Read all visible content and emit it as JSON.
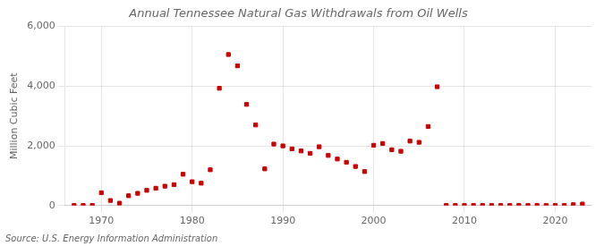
{
  "chart_data": {
    "type": "scatter",
    "title": "Annual Tennessee Natural Gas Withdrawals from Oil Wells",
    "ylabel": "Million Cubic Feet",
    "source": "Source: U.S. Energy Information Administration",
    "x": [
      1967,
      1968,
      1969,
      1970,
      1971,
      1972,
      1973,
      1974,
      1975,
      1976,
      1977,
      1978,
      1979,
      1980,
      1981,
      1982,
      1983,
      1984,
      1985,
      1986,
      1987,
      1988,
      1989,
      1990,
      1991,
      1992,
      1993,
      1994,
      1995,
      1996,
      1997,
      1998,
      1999,
      2000,
      2001,
      2002,
      2003,
      2004,
      2005,
      2006,
      2007,
      2008,
      2009,
      2010,
      2011,
      2012,
      2013,
      2014,
      2015,
      2016,
      2017,
      2018,
      2019,
      2020,
      2021,
      2022,
      2023
    ],
    "values": [
      3,
      3,
      3,
      430,
      170,
      80,
      330,
      410,
      510,
      580,
      650,
      700,
      1050,
      800,
      750,
      1200,
      3930,
      5060,
      4680,
      3390,
      2700,
      1230,
      2060,
      2000,
      1900,
      1830,
      1750,
      1970,
      1680,
      1560,
      1450,
      1310,
      1140,
      2020,
      2080,
      1870,
      1820,
      2160,
      2120,
      2650,
      3980,
      3,
      3,
      3,
      3,
      3,
      3,
      3,
      3,
      3,
      3,
      3,
      3,
      3,
      3,
      30,
      50
    ],
    "color": "#cc0000",
    "marker": "square",
    "xlim": [
      1966,
      2024
    ],
    "xticks": [
      1970,
      1980,
      1990,
      2000,
      2010,
      2020
    ],
    "ylim": [
      0,
      6000
    ],
    "yticks": [
      0,
      {
        "value": 2000,
        "label": "2,000"
      },
      {
        "value": 4000,
        "label": "4,000"
      },
      {
        "value": 6000,
        "label": "6,000"
      }
    ],
    "grid": true
  }
}
